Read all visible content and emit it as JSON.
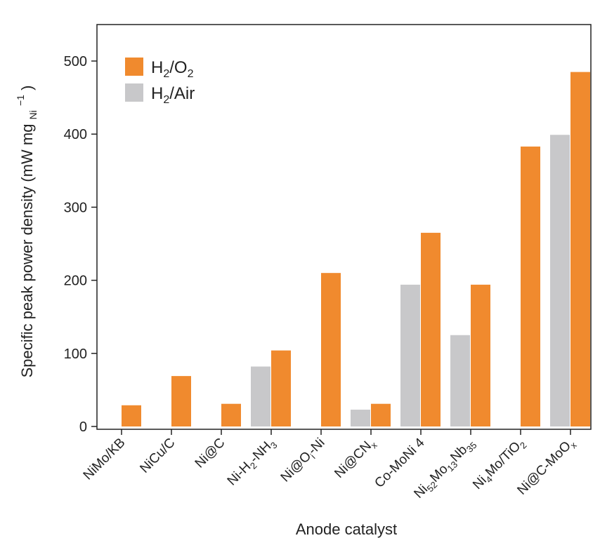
{
  "chart_data": {
    "type": "bar",
    "xlabel": "Anode catalyst",
    "ylabel": "Specific peak power density (mW mg Ni −1)",
    "ylabel_parts": {
      "main": "Specific peak power density (mW mg",
      "sub": "Ni",
      "sup": "−1",
      "close": ")"
    },
    "ylim": [
      0,
      550
    ],
    "yticks": [
      0,
      100,
      200,
      300,
      400,
      500
    ],
    "categories": [
      "NiMo/KB",
      "NiCu/C",
      "Ni@C",
      "Ni-H2-NH3",
      "Ni@Oi-Ni",
      "Ni@CNx",
      "Co-MoNi4",
      "Ni52Mo13Nb35",
      "Ni4Mo/TiO2",
      "Ni@C-MoOx"
    ],
    "category_labels": [
      [
        {
          "t": "NiMo/KB"
        }
      ],
      [
        {
          "t": "NiCu/C"
        }
      ],
      [
        {
          "t": "Ni@C"
        }
      ],
      [
        {
          "t": "Ni-H"
        },
        {
          "t": "2",
          "s": "sub"
        },
        {
          "t": "-NH"
        },
        {
          "t": "3",
          "s": "sub"
        }
      ],
      [
        {
          "t": "Ni@O"
        },
        {
          "t": "i",
          "s": "sub"
        },
        {
          "t": "-Ni"
        }
      ],
      [
        {
          "t": "Ni@CN"
        },
        {
          "t": "x",
          "s": "sub"
        }
      ],
      [
        {
          "t": "Co-MoNi 4"
        }
      ],
      [
        {
          "t": "Ni"
        },
        {
          "t": "52",
          "s": "sub"
        },
        {
          "t": "Mo"
        },
        {
          "t": "13",
          "s": "sub"
        },
        {
          "t": "Nb"
        },
        {
          "t": "35",
          "s": "sub"
        }
      ],
      [
        {
          "t": "Ni"
        },
        {
          "t": "4",
          "s": "sub"
        },
        {
          "t": "Mo/TiO"
        },
        {
          "t": "2",
          "s": "sub"
        }
      ],
      [
        {
          "t": "Ni@C-MoO"
        },
        {
          "t": "x",
          "s": "sub"
        }
      ]
    ],
    "series": [
      {
        "name": "H2/Air",
        "color": "#c8c8ca",
        "values": [
          null,
          null,
          null,
          82,
          null,
          23,
          194,
          125,
          null,
          399
        ]
      },
      {
        "name": "H2/O2",
        "color": "#f08a2e",
        "values": [
          29,
          69,
          31,
          104,
          210,
          31,
          265,
          194,
          383,
          485
        ]
      }
    ],
    "legend": {
      "position": "top-left",
      "entries": [
        {
          "series": "H2/O2",
          "color": "#f08a2e",
          "parts": [
            {
              "t": "H"
            },
            {
              "t": "2",
              "s": "sub"
            },
            {
              "t": "/O"
            },
            {
              "t": "2",
              "s": "sub"
            }
          ]
        },
        {
          "series": "H2/Air",
          "color": "#c8c8ca",
          "parts": [
            {
              "t": "H"
            },
            {
              "t": "2",
              "s": "sub"
            },
            {
              "t": "/Air"
            }
          ]
        }
      ]
    },
    "grid": false
  }
}
